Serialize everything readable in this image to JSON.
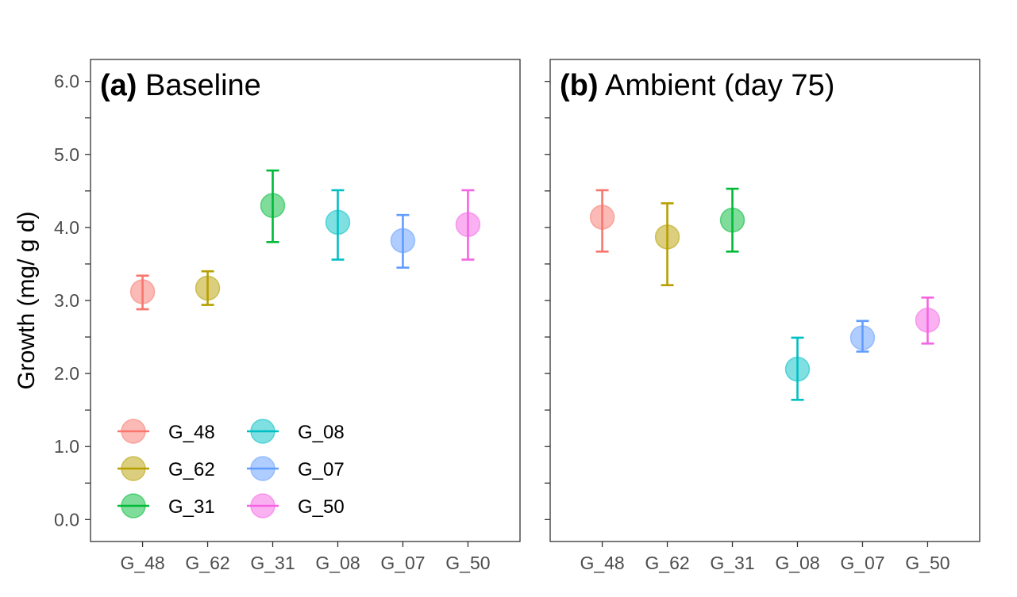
{
  "chart_data": {
    "type": "scatter",
    "ylabel": "Growth (mg/ g d)",
    "xlabel": "",
    "ylim": [
      -0.3,
      6.3
    ],
    "yticks": [
      0.0,
      1.0,
      2.0,
      3.0,
      4.0,
      5.0,
      6.0
    ],
    "ytick_labels": [
      "0.0",
      "1.0",
      "2.0",
      "3.0",
      "4.0",
      "5.0",
      "6.0"
    ],
    "categories": [
      "G_48",
      "G_62",
      "G_31",
      "G_08",
      "G_07",
      "G_50"
    ],
    "colors": {
      "G_48": "#F8766D",
      "G_62": "#B79F00",
      "G_31": "#00BA38",
      "G_08": "#00BFC4",
      "G_07": "#619CFF",
      "G_50": "#F564E3"
    },
    "legend": {
      "position": "bottom-left",
      "items": [
        "G_48",
        "G_62",
        "G_31",
        "G_08",
        "G_07",
        "G_50"
      ]
    },
    "panels": [
      {
        "tag": "(a)",
        "title": "Baseline",
        "points": [
          {
            "x": "G_48",
            "y": 3.12,
            "ymin": 2.88,
            "ymax": 3.34
          },
          {
            "x": "G_62",
            "y": 3.17,
            "ymin": 2.94,
            "ymax": 3.4
          },
          {
            "x": "G_31",
            "y": 4.3,
            "ymin": 3.8,
            "ymax": 4.78
          },
          {
            "x": "G_08",
            "y": 4.07,
            "ymin": 3.56,
            "ymax": 4.51
          },
          {
            "x": "G_07",
            "y": 3.82,
            "ymin": 3.45,
            "ymax": 4.17
          },
          {
            "x": "G_50",
            "y": 4.04,
            "ymin": 3.56,
            "ymax": 4.51
          }
        ]
      },
      {
        "tag": "(b)",
        "title": "Ambient (day 75)",
        "points": [
          {
            "x": "G_48",
            "y": 4.14,
            "ymin": 3.67,
            "ymax": 4.51
          },
          {
            "x": "G_62",
            "y": 3.87,
            "ymin": 3.21,
            "ymax": 4.33
          },
          {
            "x": "G_31",
            "y": 4.1,
            "ymin": 3.67,
            "ymax": 4.53
          },
          {
            "x": "G_08",
            "y": 2.06,
            "ymin": 1.64,
            "ymax": 2.49
          },
          {
            "x": "G_07",
            "y": 2.49,
            "ymin": 2.3,
            "ymax": 2.72
          },
          {
            "x": "G_50",
            "y": 2.73,
            "ymin": 2.41,
            "ymax": 3.04
          }
        ]
      }
    ]
  }
}
